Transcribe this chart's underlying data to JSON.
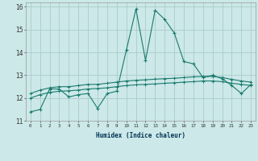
{
  "xlabel": "Humidex (Indice chaleur)",
  "background_color": "#cce8e8",
  "grid_color": "#aacccc",
  "line_color": "#1a7a6e",
  "xlim": [
    -0.5,
    23.5
  ],
  "ylim": [
    11,
    16.2
  ],
  "yticks": [
    11,
    12,
    13,
    14,
    15,
    16
  ],
  "xticks": [
    0,
    1,
    2,
    3,
    4,
    5,
    6,
    7,
    8,
    9,
    10,
    11,
    12,
    13,
    14,
    15,
    16,
    17,
    18,
    19,
    20,
    21,
    22,
    23
  ],
  "x": [
    0,
    1,
    2,
    3,
    4,
    5,
    6,
    7,
    8,
    9,
    10,
    11,
    12,
    13,
    14,
    15,
    16,
    17,
    18,
    19,
    20,
    21,
    22,
    23
  ],
  "line1": [
    11.4,
    11.5,
    12.4,
    12.4,
    12.05,
    12.15,
    12.2,
    11.55,
    12.2,
    12.3,
    14.1,
    15.9,
    13.65,
    15.85,
    15.45,
    14.85,
    13.6,
    13.5,
    12.9,
    13.0,
    12.85,
    12.55,
    12.2,
    12.6
  ],
  "line2": [
    12.2,
    12.35,
    12.45,
    12.5,
    12.5,
    12.55,
    12.6,
    12.6,
    12.65,
    12.7,
    12.75,
    12.78,
    12.8,
    12.83,
    12.85,
    12.87,
    12.9,
    12.93,
    12.95,
    12.95,
    12.9,
    12.82,
    12.75,
    12.7
  ],
  "line3": [
    12.0,
    12.15,
    12.25,
    12.3,
    12.32,
    12.35,
    12.4,
    12.42,
    12.45,
    12.5,
    12.55,
    12.58,
    12.6,
    12.62,
    12.65,
    12.67,
    12.7,
    12.72,
    12.75,
    12.75,
    12.72,
    12.65,
    12.6,
    12.55
  ]
}
